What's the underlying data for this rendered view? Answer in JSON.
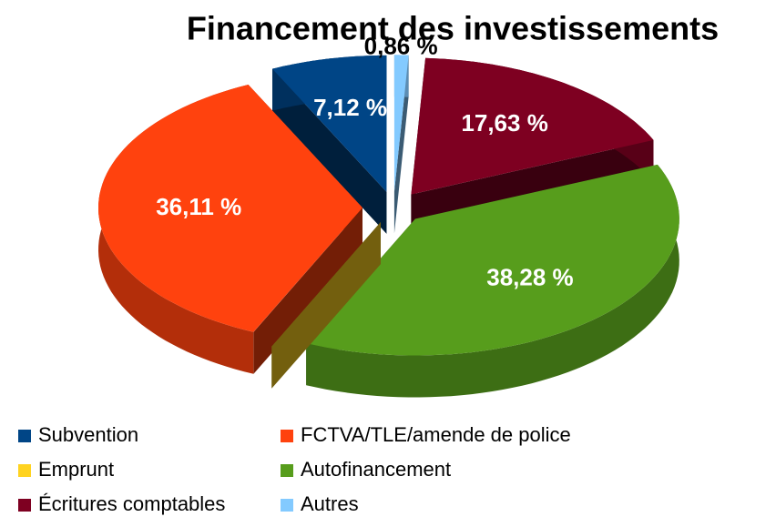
{
  "chart_data": {
    "type": "pie",
    "title": "Financement des investissements",
    "categories": [
      "Subvention",
      "FCTVA/TLE/amende de police",
      "Emprunt",
      "Autofinancement",
      "Écritures comptables",
      "Autres"
    ],
    "values": [
      7.12,
      36.11,
      0,
      38.28,
      17.63,
      0.86
    ],
    "value_labels": [
      "7,12 %",
      "36,11 %",
      null,
      "38,28 %",
      "17,63 %",
      "0,86 %"
    ],
    "colors": [
      "#004586",
      "#ff420e",
      "#ffd320",
      "#579d1c",
      "#7e0021",
      "#83caff"
    ],
    "legend": "bottom"
  }
}
